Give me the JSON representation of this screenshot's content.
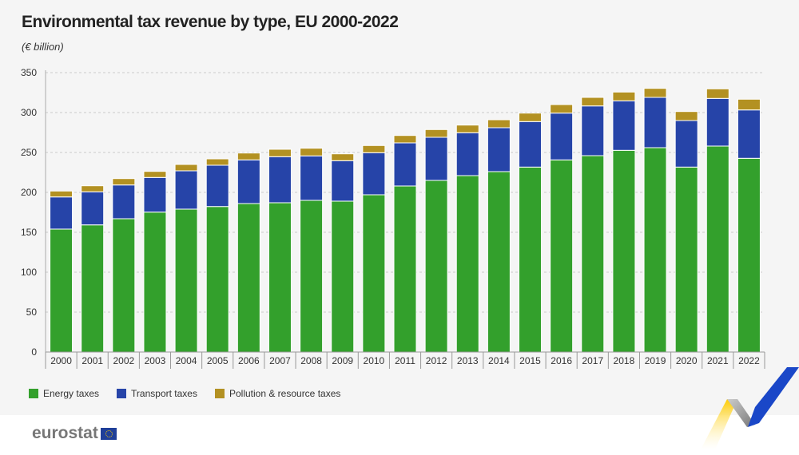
{
  "chart_data": {
    "type": "bar",
    "stacked": true,
    "title": "Environmental tax revenue by type, EU 2000-2022",
    "subtitle": "(€ billion)",
    "xlabel": "",
    "ylabel": "",
    "ylim": [
      0,
      350
    ],
    "yticks": [
      0,
      50,
      100,
      150,
      200,
      250,
      300,
      350
    ],
    "grid": true,
    "legend_placement": "bottom-left",
    "categories": [
      "2000",
      "2001",
      "2002",
      "2003",
      "2004",
      "2005",
      "2006",
      "2007",
      "2008",
      "2009",
      "2010",
      "2011",
      "2012",
      "2013",
      "2014",
      "2015",
      "2016",
      "2017",
      "2018",
      "2019",
      "2020",
      "2021",
      "2022"
    ],
    "series": [
      {
        "name": "Energy taxes",
        "color": "#33a02c",
        "values": [
          154.0,
          159.3,
          167.0,
          175.3,
          179.0,
          182.3,
          186.0,
          187.0,
          190.0,
          189.0,
          197.0,
          208.0,
          215.0,
          221.0,
          226.0,
          231.7,
          240.7,
          246.0,
          252.7,
          256.0,
          231.7,
          258.0,
          242.7
        ]
      },
      {
        "name": "Transport taxes",
        "color": "#2644a8",
        "values": [
          40.3,
          41.4,
          42.3,
          43.4,
          48.0,
          51.7,
          54.7,
          57.7,
          55.7,
          50.7,
          52.7,
          54.0,
          54.0,
          53.7,
          55.0,
          57.0,
          58.6,
          62.3,
          62.0,
          63.0,
          58.3,
          59.7,
          60.6
        ]
      },
      {
        "name": "Pollution & resource taxes",
        "color": "#b39122",
        "values": [
          7.4,
          7.6,
          8.0,
          7.6,
          8.0,
          8.0,
          8.6,
          9.3,
          9.6,
          8.6,
          9.0,
          9.3,
          9.7,
          9.6,
          10.0,
          10.6,
          10.7,
          10.7,
          11.0,
          11.3,
          11.3,
          12.0,
          13.4
        ]
      }
    ]
  },
  "footer": {
    "logo": "eurostat"
  }
}
